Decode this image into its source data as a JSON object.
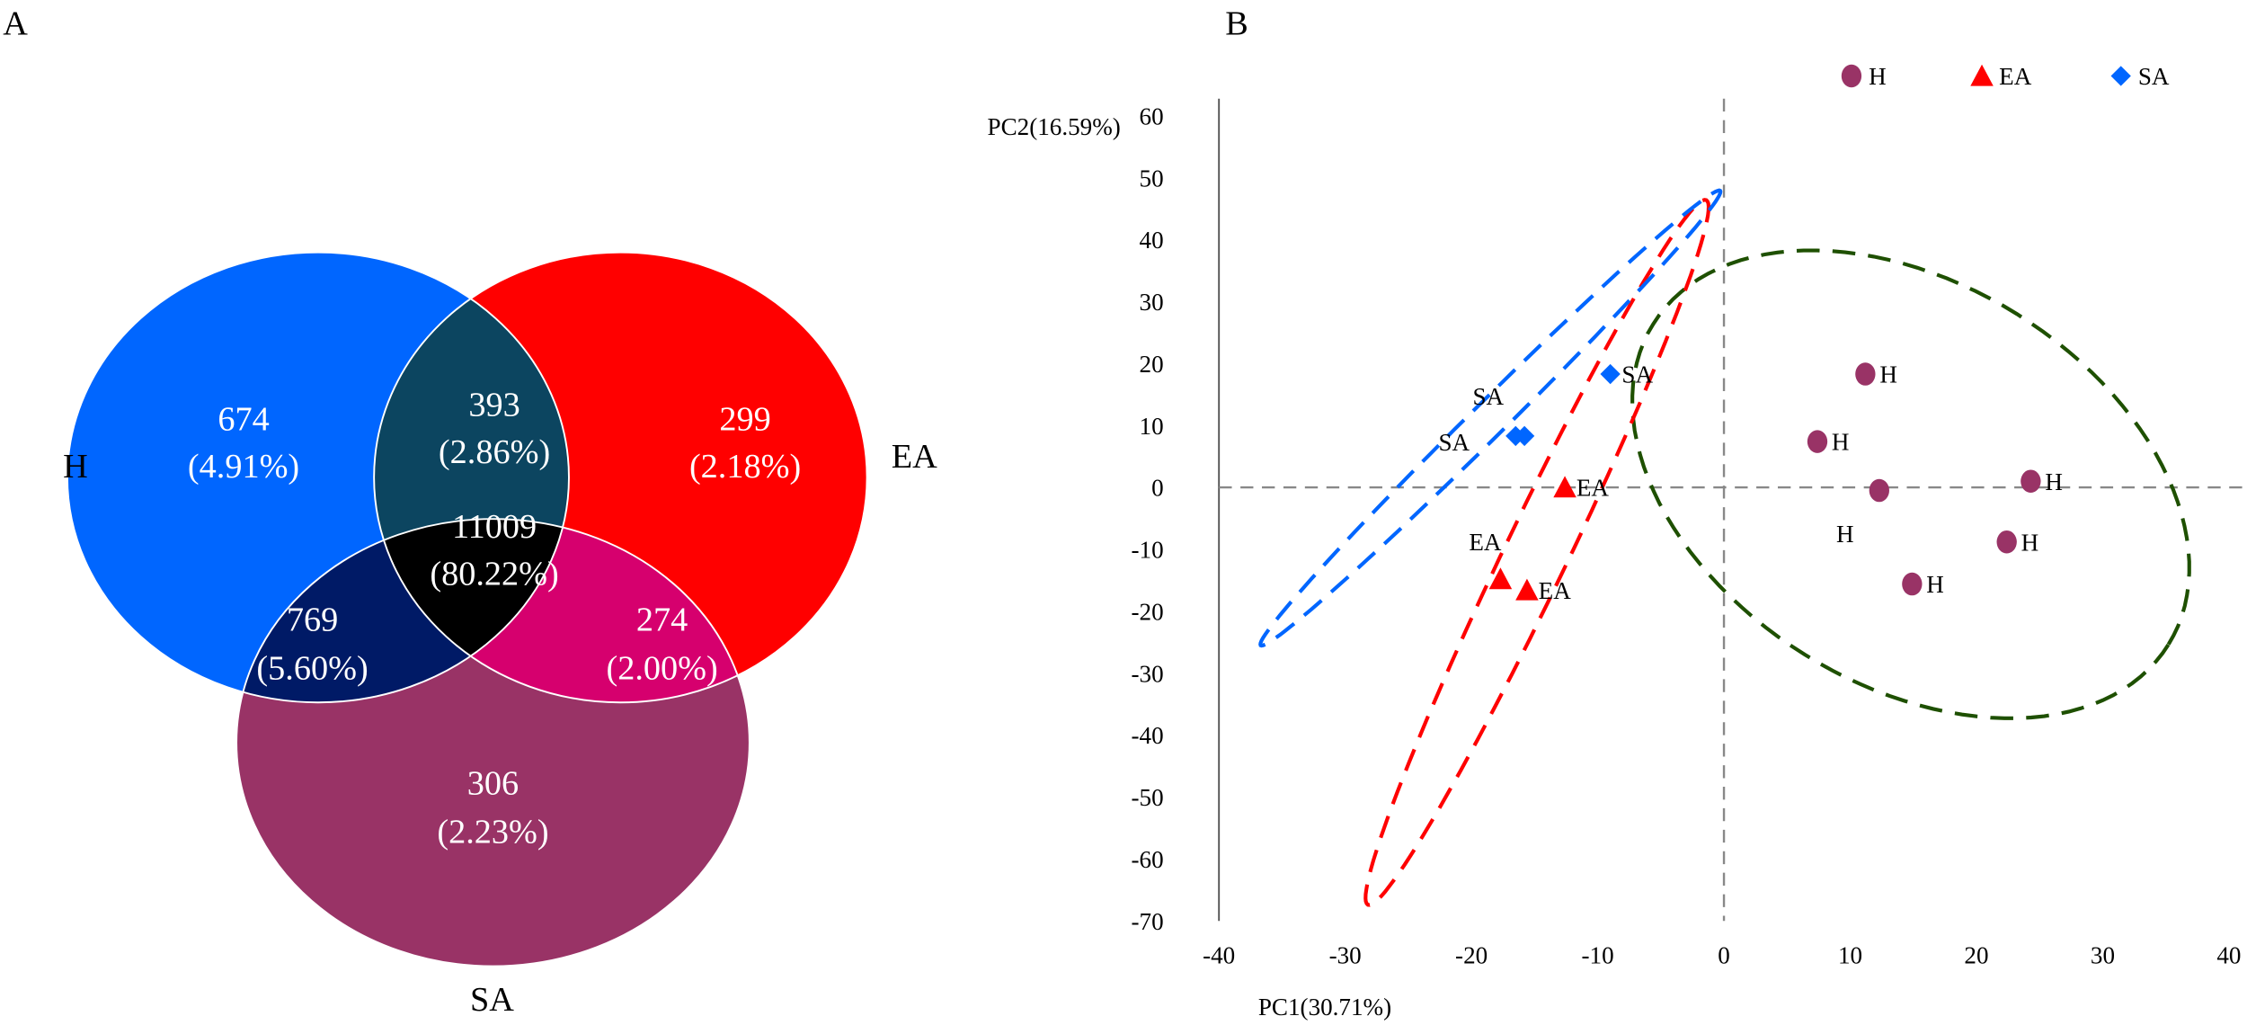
{
  "panels": {
    "a_label": "A",
    "b_label": "B"
  },
  "chart_data": [
    {
      "type": "venn",
      "sets": [
        {
          "name": "H",
          "color": "#0066ff"
        },
        {
          "name": "EA",
          "color": "#ff0000"
        },
        {
          "name": "SA",
          "color": "#993366"
        }
      ],
      "regions": {
        "H_only": {
          "count": "674",
          "pct": "(4.91%)",
          "color": "#0066ff"
        },
        "H_EA": {
          "count": "393",
          "pct": "(2.86%)",
          "color": "#0c4560"
        },
        "EA_only": {
          "count": "299",
          "pct": "(2.18%)",
          "color": "#ff0000"
        },
        "all": {
          "count": "11009",
          "pct": "(80.22%)",
          "color": "#000000"
        },
        "H_SA": {
          "count": "769",
          "pct": "(5.60%)",
          "color": "#001a66"
        },
        "EA_SA": {
          "count": "274",
          "pct": "(2.00%)",
          "color": "#d6006e"
        },
        "SA_only": {
          "count": "306",
          "pct": "(2.23%)",
          "color": "#993366"
        }
      }
    },
    {
      "type": "scatter",
      "xlabel": "PC1(30.71%)",
      "ylabel": "PC2(16.59%)",
      "xlim": [
        -40,
        40
      ],
      "ylim": [
        -70,
        60
      ],
      "xticks": [
        "-40",
        "-30",
        "-20",
        "-10",
        "0",
        "10",
        "20",
        "30",
        "40"
      ],
      "yticks": [
        "60",
        "50",
        "40",
        "30",
        "20",
        "10",
        "0",
        "-10",
        "-20",
        "-30",
        "-40",
        "-50",
        "-60",
        "-70"
      ],
      "legend": {
        "placement": "top-right",
        "entries": [
          "H",
          "EA",
          "SA"
        ]
      },
      "series": [
        {
          "name": "H",
          "marker": "circle",
          "color": "#993366",
          "points": [
            {
              "x": 11.2,
              "y": 18.3,
              "label": "H"
            },
            {
              "x": 7.4,
              "y": 7.4,
              "label": "H"
            },
            {
              "x": 12.3,
              "y": -0.5,
              "label": "H"
            },
            {
              "x": 24.3,
              "y": 1.0,
              "label": "H"
            },
            {
              "x": 22.4,
              "y": -8.8,
              "label": "H"
            },
            {
              "x": 14.9,
              "y": -15.6,
              "label": "H"
            }
          ],
          "ellipse": {
            "center": [
              14.8,
              0.5
            ],
            "a": [
              20.4,
              -25.9
            ],
            "b": [
              -8.4,
              -27.5
            ],
            "color": "#1e5000"
          }
        },
        {
          "name": "EA",
          "marker": "triangle",
          "color": "#ff0000",
          "points": [
            {
              "x": -12.6,
              "y": 0.0,
              "label": "EA"
            },
            {
              "x": -17.7,
              "y": -14.8,
              "label": "EA"
            },
            {
              "x": -15.6,
              "y": -16.6,
              "label": "EA"
            }
          ],
          "ellipse": {
            "center": [
              -14.8,
              -10.5
            ],
            "a": [
              13.4,
              56.9
            ],
            "b": [
              2.25,
              -2.2
            ],
            "color": "#ff0000"
          }
        },
        {
          "name": "SA",
          "marker": "diamond",
          "color": "#0066ff",
          "points": [
            {
              "x": -9.0,
              "y": 18.3,
              "label": "SA"
            },
            {
              "x": -16.5,
              "y": 8.3,
              "label": "SA"
            },
            {
              "x": -15.8,
              "y": 8.3,
              "label": "SA"
            }
          ],
          "ellipse": {
            "center": [
              -18.5,
              11.2
            ],
            "a": [
              18.2,
              36.7
            ],
            "b": [
              0.96,
              -1.97
            ],
            "color": "#0066ff"
          }
        }
      ]
    }
  ]
}
